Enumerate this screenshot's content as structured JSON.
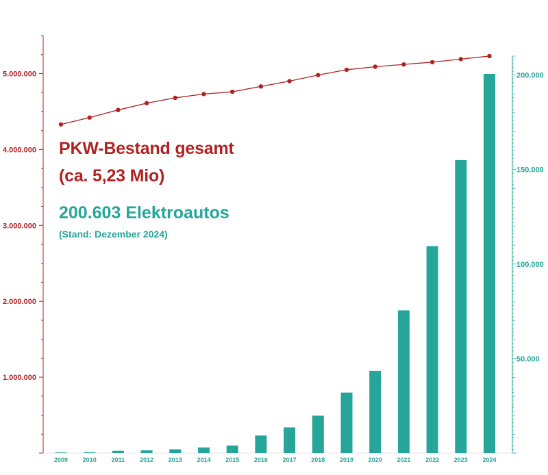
{
  "chart_data": {
    "type": "bar",
    "categories": [
      "2009",
      "2010",
      "2011",
      "2012",
      "2013",
      "2014",
      "2015",
      "2016",
      "2017",
      "2018",
      "2019",
      "2020",
      "2021",
      "2022",
      "2023",
      "2024"
    ],
    "series": [
      {
        "type": "line",
        "axis": "left",
        "color": "#b22222",
        "values": [
          4330000,
          4420000,
          4520000,
          4610000,
          4680000,
          4730000,
          4760000,
          4830000,
          4900000,
          4980000,
          5050000,
          5090000,
          5120000,
          5150000,
          5190000,
          5230000
        ]
      },
      {
        "type": "bar",
        "axis": "right",
        "color": "#26a69a",
        "values": [
          200,
          500,
          1200,
          1500,
          2000,
          3000,
          4000,
          9300,
          13600,
          19800,
          32000,
          43500,
          75500,
          109500,
          155000,
          200603
        ]
      }
    ],
    "y_left": {
      "ylim": [
        0,
        5500000
      ],
      "ticks": [
        1000000,
        2000000,
        3000000,
        4000000,
        5000000
      ],
      "tick_labels": [
        "1.000.000",
        "2.000.000",
        "3.000.000",
        "4.000.000",
        "5.000.000"
      ],
      "color": "#b22222"
    },
    "y_right": {
      "ylim": [
        0,
        210000
      ],
      "ticks": [
        50000,
        100000,
        150000,
        200000
      ],
      "tick_labels": [
        "50.000",
        "100.000",
        "150.000",
        "200.000"
      ],
      "color": "#26a69a"
    },
    "grid": false,
    "legend": "none"
  },
  "annotations": {
    "total_line1": "PKW-Bestand gesamt",
    "total_line2": "(ca. 5,23 Mio)",
    "ev_count": "200.603 Elektroautos",
    "ev_date": "(Stand: Dezember 2024)"
  },
  "colors": {
    "red": "#b22222",
    "teal": "#26a69a"
  }
}
